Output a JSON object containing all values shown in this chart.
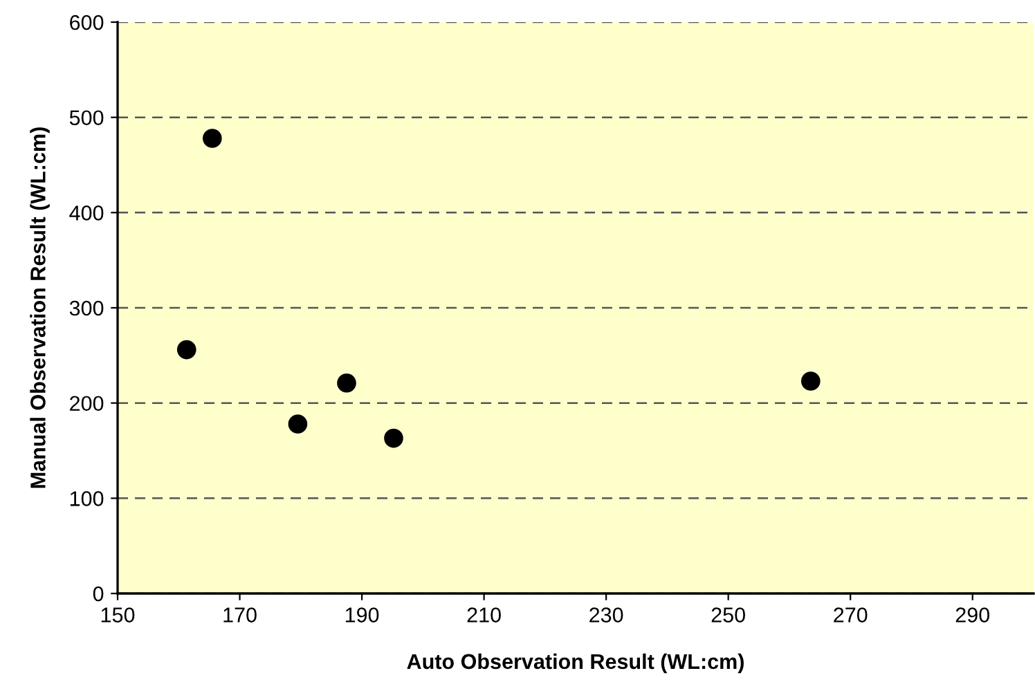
{
  "chart_data": {
    "type": "scatter",
    "xlabel": "Auto Observation Result (WL:cm)",
    "ylabel": "Manual Observation Result (WL:cm)",
    "x": [
      161.3,
      165.5,
      179.5,
      187.5,
      195.2,
      263.5
    ],
    "series": [
      {
        "color": "#000000",
        "values": [
          256,
          478,
          178,
          221,
          163,
          223
        ]
      }
    ],
    "xlim": [
      150,
      300
    ],
    "xticks": [
      150,
      170,
      190,
      210,
      230,
      250,
      270,
      290
    ],
    "ylim": [
      0,
      600
    ],
    "yticks": [
      0,
      100,
      200,
      300,
      400,
      500,
      600
    ],
    "grid": "y",
    "marker": "circle",
    "legend": false
  }
}
